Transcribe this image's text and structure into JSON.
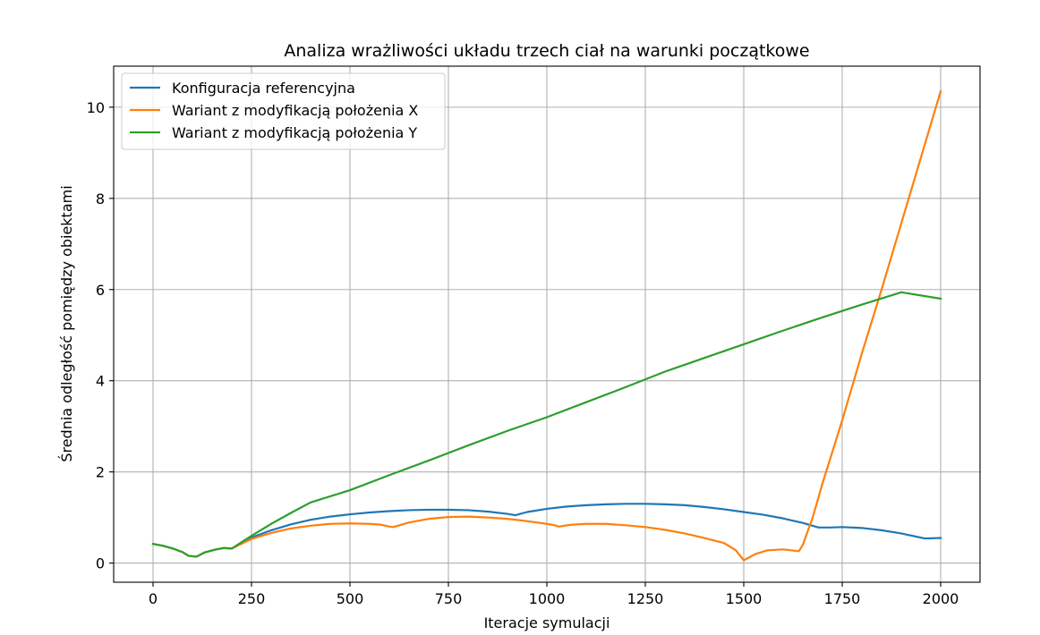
{
  "chart_data": {
    "type": "line",
    "title": "Analiza wrażliwości układu trzech ciał na warunki początkowe",
    "xlabel": "Iteracje symulacji",
    "ylabel": "Średnia odległość pomiędzy obiektami",
    "xlim": [
      -100,
      2100
    ],
    "ylim": [
      -0.42,
      10.9
    ],
    "xticks": [
      0,
      250,
      500,
      750,
      1000,
      1250,
      1500,
      1750,
      2000
    ],
    "xtick_labels": [
      "0",
      "250",
      "500",
      "750",
      "1000",
      "1250",
      "1500",
      "1750",
      "2000"
    ],
    "yticks": [
      0,
      2,
      4,
      6,
      8,
      10
    ],
    "ytick_labels": [
      "0",
      "2",
      "4",
      "6",
      "8",
      "10"
    ],
    "grid": true,
    "legend_position": "top-left",
    "series": [
      {
        "name": "Konfiguracja referencyjna",
        "color": "#1f77b4",
        "x": [
          0,
          25,
          50,
          75,
          90,
          110,
          130,
          160,
          180,
          200,
          250,
          300,
          350,
          400,
          450,
          500,
          550,
          600,
          650,
          700,
          750,
          800,
          850,
          900,
          920,
          950,
          1000,
          1050,
          1100,
          1150,
          1200,
          1250,
          1300,
          1350,
          1400,
          1450,
          1500,
          1550,
          1600,
          1650,
          1690,
          1720,
          1750,
          1800,
          1850,
          1900,
          1960,
          2000
        ],
        "y": [
          0.42,
          0.38,
          0.32,
          0.24,
          0.16,
          0.14,
          0.23,
          0.3,
          0.33,
          0.32,
          0.56,
          0.72,
          0.85,
          0.95,
          1.02,
          1.07,
          1.11,
          1.14,
          1.16,
          1.17,
          1.17,
          1.16,
          1.13,
          1.08,
          1.05,
          1.12,
          1.19,
          1.24,
          1.27,
          1.29,
          1.3,
          1.3,
          1.29,
          1.27,
          1.23,
          1.18,
          1.12,
          1.06,
          0.98,
          0.88,
          0.78,
          0.78,
          0.79,
          0.77,
          0.72,
          0.65,
          0.54,
          0.55
        ]
      },
      {
        "name": "Wariant z modyfikacją położenia X",
        "color": "#ff7f0e",
        "x": [
          0,
          25,
          50,
          75,
          90,
          110,
          130,
          160,
          180,
          200,
          250,
          300,
          350,
          400,
          450,
          500,
          550,
          580,
          600,
          610,
          650,
          700,
          750,
          800,
          850,
          900,
          950,
          1000,
          1020,
          1030,
          1060,
          1100,
          1150,
          1200,
          1250,
          1300,
          1350,
          1400,
          1450,
          1480,
          1500,
          1530,
          1560,
          1600,
          1620,
          1640,
          1650,
          1675,
          1700,
          1750,
          1800,
          1850,
          1900,
          1950,
          2000
        ],
        "y": [
          0.42,
          0.38,
          0.32,
          0.24,
          0.16,
          0.14,
          0.23,
          0.3,
          0.33,
          0.32,
          0.53,
          0.66,
          0.76,
          0.82,
          0.86,
          0.87,
          0.86,
          0.84,
          0.8,
          0.79,
          0.89,
          0.97,
          1.01,
          1.02,
          1.0,
          0.97,
          0.92,
          0.86,
          0.83,
          0.8,
          0.84,
          0.86,
          0.86,
          0.83,
          0.79,
          0.73,
          0.65,
          0.55,
          0.44,
          0.28,
          0.06,
          0.2,
          0.28,
          0.3,
          0.28,
          0.26,
          0.4,
          1.0,
          1.75,
          3.13,
          4.6,
          6.0,
          7.45,
          8.9,
          10.35
        ]
      },
      {
        "name": "Wariant z modyfikacją położenia Y",
        "color": "#2ca02c",
        "x": [
          0,
          25,
          50,
          75,
          90,
          110,
          130,
          160,
          180,
          200,
          250,
          300,
          350,
          400,
          500,
          600,
          700,
          800,
          900,
          1000,
          1100,
          1200,
          1300,
          1400,
          1500,
          1600,
          1700,
          1800,
          1900,
          2000
        ],
        "y": [
          0.42,
          0.38,
          0.32,
          0.24,
          0.16,
          0.14,
          0.23,
          0.3,
          0.33,
          0.32,
          0.6,
          0.86,
          1.1,
          1.33,
          1.6,
          1.93,
          2.25,
          2.58,
          2.9,
          3.2,
          3.53,
          3.86,
          4.2,
          4.5,
          4.8,
          5.1,
          5.39,
          5.67,
          5.94,
          5.8
        ]
      }
    ]
  }
}
